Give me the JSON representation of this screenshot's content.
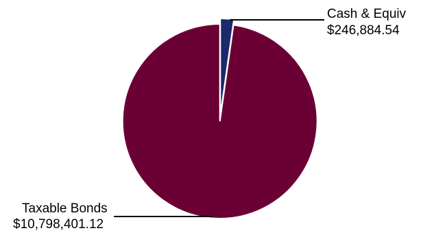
{
  "chart_data": {
    "type": "pie",
    "slices": [
      {
        "label": "Cash & Equiv",
        "value": 246884.54,
        "value_label": "$246,884.54",
        "color": "#1a2a6c"
      },
      {
        "label": "Taxable Bonds",
        "value": 10798401.12,
        "value_label": "$10,798,401.12",
        "color": "#6b0035"
      }
    ],
    "start_angle_deg": 0,
    "direction": "clockwise",
    "exploded": true,
    "slice_border_color": "#ffffff",
    "legend": "none"
  }
}
